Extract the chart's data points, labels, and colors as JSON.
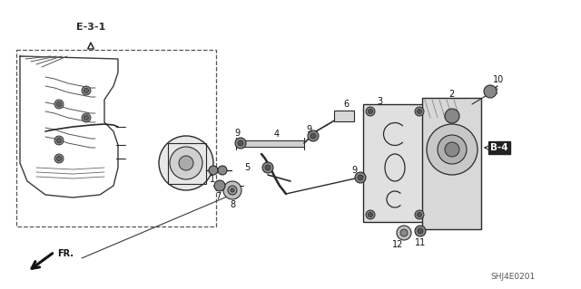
{
  "bg_color": "#ffffff",
  "fig_width": 6.4,
  "fig_height": 3.19,
  "dpi": 100,
  "diagram_code": "SHJ4E0201",
  "ref_e31": "E-3-1",
  "ref_b4": "B-4",
  "fr_label": "FR.",
  "line_color": "#2a2a2a",
  "light_gray": "#b0b0b0",
  "mid_gray": "#888888",
  "dark_gray": "#444444"
}
